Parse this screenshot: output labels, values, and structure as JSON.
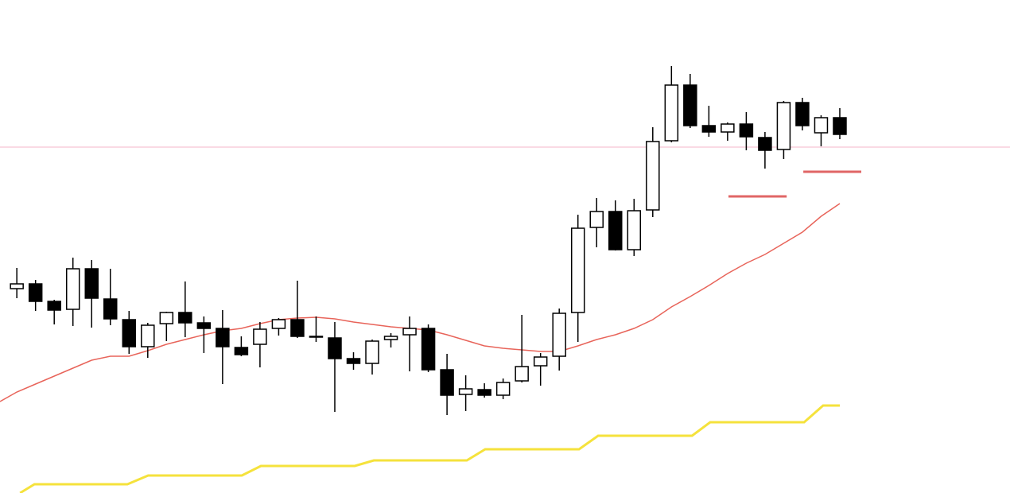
{
  "chart_data": {
    "type": "candlestick",
    "x": [
      0,
      1,
      2,
      3,
      4,
      5,
      6,
      7,
      8,
      9,
      10,
      11,
      12,
      13,
      14,
      15,
      16,
      17,
      18,
      19,
      20,
      21,
      22,
      23,
      24,
      25,
      26,
      27,
      28,
      29,
      30,
      31,
      32,
      33,
      34,
      35,
      36,
      37,
      38,
      39,
      40,
      41,
      42,
      43,
      44
    ],
    "open": [
      257,
      263,
      241,
      231,
      282,
      244,
      218,
      184,
      213,
      227,
      214,
      207,
      183,
      187,
      207,
      218,
      197,
      195,
      169,
      163,
      193,
      199,
      207,
      155,
      124,
      130,
      123,
      141,
      160,
      172,
      227,
      334,
      354,
      306,
      356,
      443,
      513,
      462,
      454,
      464,
      447,
      432,
      491,
      453,
      472
    ],
    "close": [
      263,
      241,
      230,
      282,
      245,
      219,
      184,
      211,
      227,
      214,
      207,
      184,
      174,
      206,
      218,
      197,
      196,
      169,
      163,
      191,
      197,
      207,
      155,
      123,
      131,
      123,
      139,
      159,
      171,
      226,
      333,
      354,
      306,
      355,
      442,
      513,
      462,
      454,
      464,
      448,
      431,
      491,
      462,
      472,
      451
    ],
    "high": [
      283,
      268,
      243,
      296,
      293,
      282,
      229,
      214,
      228,
      266,
      222,
      230,
      197,
      215,
      220,
      267,
      222,
      215,
      177,
      193,
      201,
      222,
      212,
      175,
      148,
      138,
      144,
      224,
      176,
      232,
      350,
      371,
      368,
      370,
      460,
      537,
      527,
      487,
      466,
      479,
      454,
      493,
      497,
      475,
      484
    ],
    "low": [
      245,
      229,
      212,
      210,
      208,
      211,
      175,
      170,
      191,
      196,
      176,
      137,
      172,
      158,
      198,
      195,
      190,
      102,
      155,
      149,
      183,
      153,
      152,
      98,
      103,
      120,
      118,
      139,
      135,
      154,
      190,
      309,
      305,
      298,
      347,
      441,
      459,
      448,
      443,
      431,
      408,
      420,
      456,
      436,
      445
    ],
    "up_color": "#ffffff",
    "down_color": "#000000",
    "outline_color": "#000000",
    "xlim": [
      -0.9,
      53.1
    ],
    "ylim": [
      0,
      620
    ],
    "lines": [
      {
        "color": "#e8645a",
        "width": 1.5,
        "x": [
          -0.9,
          0,
          1,
          2,
          3,
          4,
          5,
          6,
          7,
          8,
          9,
          10,
          11,
          12,
          13,
          14,
          15,
          16,
          17,
          18,
          19,
          20,
          21,
          22,
          23,
          24,
          25,
          26,
          27,
          28,
          29,
          30,
          31,
          32,
          33,
          34,
          35,
          36,
          37,
          38,
          39,
          40,
          41,
          42,
          43,
          44
        ],
        "values": [
          115,
          127,
          137,
          147,
          157,
          167,
          172,
          172,
          179,
          187,
          193,
          199,
          204,
          207,
          213,
          218,
          220,
          221,
          219,
          215,
          212,
          209,
          207,
          205,
          199,
          192,
          185,
          182,
          180,
          178,
          178,
          185,
          193,
          199,
          207,
          218,
          234,
          247,
          261,
          276,
          289,
          300,
          314,
          328,
          348,
          364
        ]
      },
      {
        "color": "#f5e23c",
        "width": 3,
        "x": [
          0.17,
          0.94,
          5.91,
          7.02,
          12.03,
          13.05,
          18.07,
          19.09,
          24.06,
          25.04,
          30.06,
          31.08,
          36.1,
          37.07,
          42.09,
          43.11,
          44
        ],
        "values": [
          0,
          11,
          11,
          22,
          22,
          34,
          34,
          41,
          41,
          55,
          55,
          72,
          72,
          89,
          89,
          110,
          110
        ]
      },
      {
        "color": "#f4b6c8",
        "width": 1,
        "x": [
          -0.9,
          53.1
        ],
        "values": [
          435,
          435
        ]
      },
      {
        "color": "#e06666",
        "width": 3,
        "x": [
          38.05,
          41.16
        ],
        "values": [
          373,
          373
        ]
      },
      {
        "color": "#e06666",
        "width": 3,
        "x": [
          42.05,
          45.15
        ],
        "values": [
          404,
          404
        ]
      }
    ]
  }
}
